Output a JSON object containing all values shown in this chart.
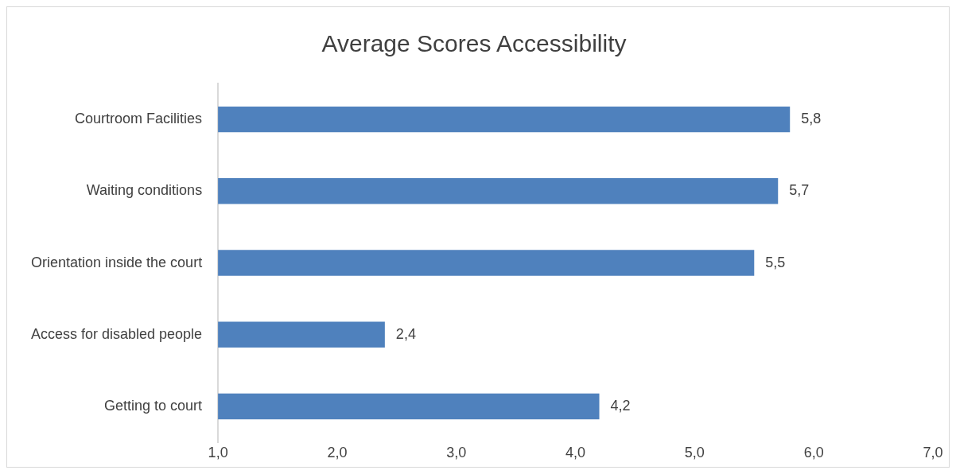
{
  "chart_data": {
    "type": "bar",
    "orientation": "horizontal",
    "title": "Average Scores Accessibility",
    "categories": [
      "Courtroom Facilities",
      "Waiting conditions",
      "Orientation inside the court",
      "Access for disabled people",
      "Getting to court"
    ],
    "values": [
      5.8,
      5.7,
      5.5,
      2.4,
      4.2
    ],
    "value_labels": [
      "5,8",
      "5,7",
      "5,5",
      "2,4",
      "4,2"
    ],
    "color": "#4f81bd",
    "xlim": [
      1,
      7
    ],
    "xticks": [
      {
        "value": 1,
        "label": "1,0"
      },
      {
        "value": 2,
        "label": "2,0"
      },
      {
        "value": 3,
        "label": "3,0"
      },
      {
        "value": 4,
        "label": "4,0"
      },
      {
        "value": 5,
        "label": "5,0"
      },
      {
        "value": 6,
        "label": "6,0"
      },
      {
        "value": 7,
        "label": "7,0"
      }
    ],
    "grid": false,
    "legend": false
  }
}
